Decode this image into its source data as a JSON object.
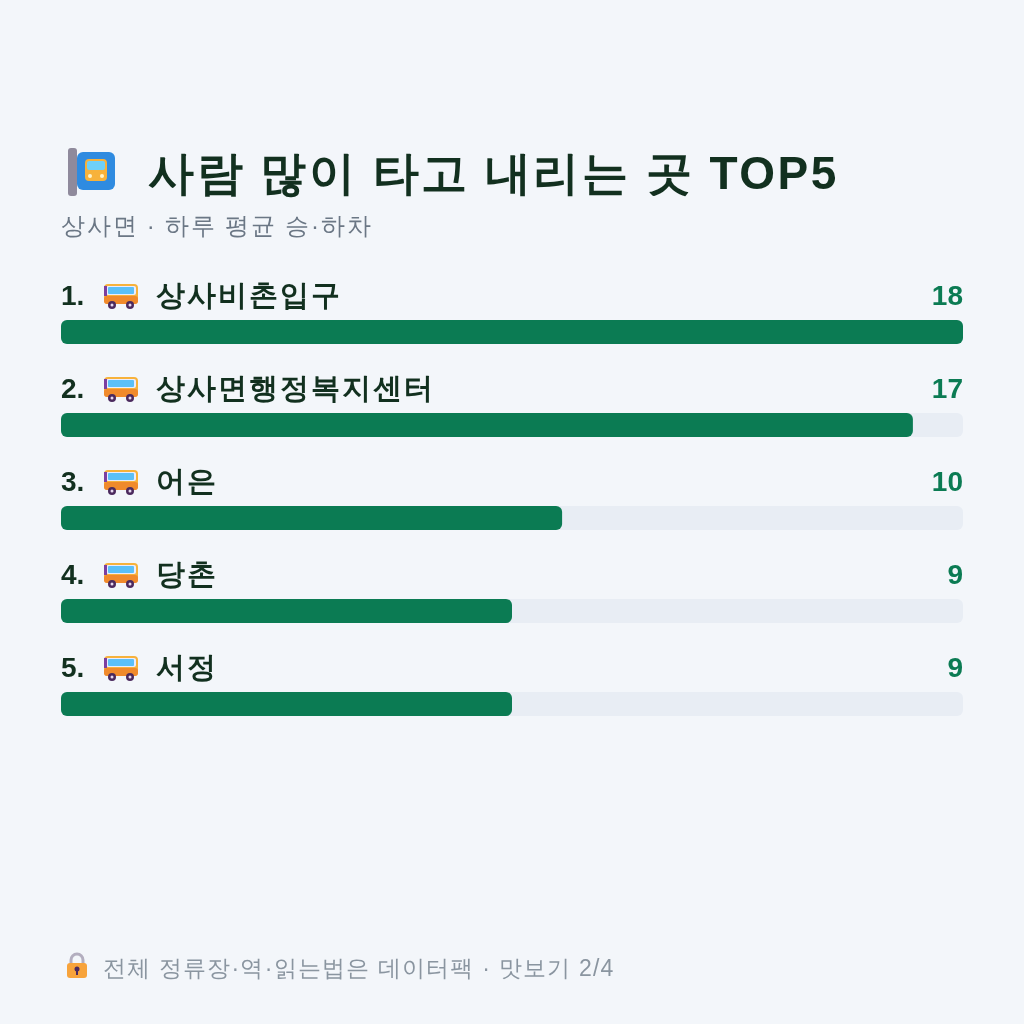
{
  "chart_data": {
    "type": "bar",
    "orientation": "horizontal",
    "title": "사람 많이 타고 내리는 곳 TOP5",
    "subtitle": "상사면 · 하루 평균 승·하차",
    "categories": [
      "1. 상사비촌입구",
      "2. 상사면행정복지센터",
      "3. 어은",
      "4. 당촌",
      "5. 서정"
    ],
    "values": [
      18,
      17,
      10,
      9,
      9
    ],
    "color": "#0b7b53",
    "data_labels": true,
    "annotations": [
      "전체 정류장·역·읽는법은 데이터팩 · 맛보기 2/4"
    ]
  }
}
